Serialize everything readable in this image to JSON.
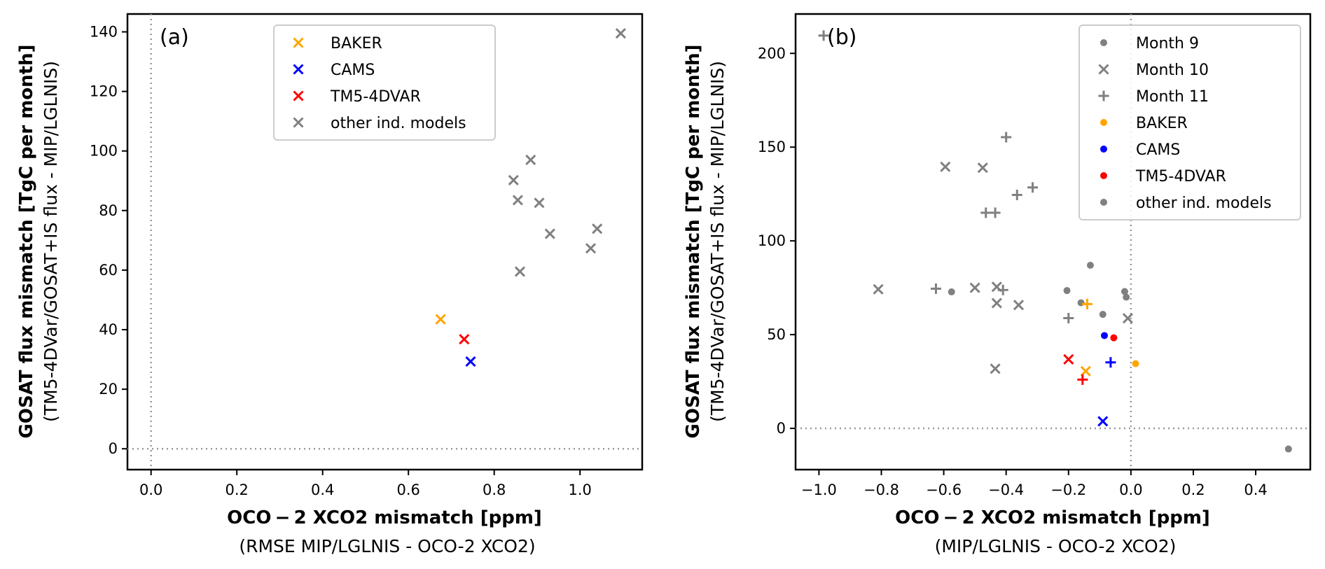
{
  "chart_data": [
    {
      "type": "scatter",
      "panel_label": "(a)",
      "xlabel": "OCO − 2 XCO2 mismatch [ppm]",
      "xlabel_sub": "(RMSE MIP/LGLNIS - OCO-2 XCO2)",
      "ylabel": "GOSAT flux mismatch [TgC per month]",
      "ylabel_sub": "(TM5-4DVar/GOSAT+IS flux - MIP/LGLNIS)",
      "xlim": [
        -0.055,
        1.145
      ],
      "ylim": [
        -7,
        146
      ],
      "xticks": [
        0.0,
        0.2,
        0.4,
        0.6,
        0.8,
        1.0
      ],
      "xtick_labels": [
        "0.0",
        "0.2",
        "0.4",
        "0.6",
        "0.8",
        "1.0"
      ],
      "yticks": [
        0,
        20,
        40,
        60,
        80,
        100,
        120,
        140
      ],
      "ytick_labels": [
        "0",
        "20",
        "40",
        "60",
        "80",
        "100",
        "120",
        "140"
      ],
      "ref_lines": {
        "x": 0,
        "y": 0
      },
      "legend": {
        "position": "upper center",
        "entries": [
          {
            "label": "BAKER",
            "color": "#FFA500",
            "marker": "x"
          },
          {
            "label": "CAMS",
            "color": "#0000FF",
            "marker": "x"
          },
          {
            "label": "TM5-4DVAR",
            "color": "#FF0000",
            "marker": "x"
          },
          {
            "label": "other ind. models",
            "color": "#808080",
            "marker": "x"
          }
        ]
      },
      "series": [
        {
          "name": "BAKER",
          "color": "#FFA500",
          "marker": "x",
          "x": [
            0.675
          ],
          "y": [
            43.5
          ]
        },
        {
          "name": "CAMS",
          "color": "#0000FF",
          "marker": "x",
          "x": [
            0.745
          ],
          "y": [
            29.3
          ]
        },
        {
          "name": "TM5-4DVAR",
          "color": "#FF0000",
          "marker": "x",
          "x": [
            0.73
          ],
          "y": [
            36.8
          ]
        },
        {
          "name": "other ind. models",
          "color": "#808080",
          "marker": "x",
          "x": [
            0.845,
            0.855,
            0.885,
            0.905,
            0.86,
            0.93,
            1.025,
            1.04,
            1.095
          ],
          "y": [
            90.2,
            83.5,
            97.0,
            82.6,
            59.5,
            72.2,
            67.3,
            73.9,
            139.5
          ]
        }
      ]
    },
    {
      "type": "scatter",
      "panel_label": "(b)",
      "xlabel": "OCO − 2 XCO2 mismatch [ppm]",
      "xlabel_sub": "(MIP/LGLNIS - OCO-2 XCO2)",
      "ylabel": "GOSAT flux mismatch [TgC per month]",
      "ylabel_sub": "(TM5-4DVar/GOSAT+IS flux - MIP/LGLNIS)",
      "xlim": [
        -1.075,
        0.575
      ],
      "ylim": [
        -22,
        221
      ],
      "xticks": [
        -1.0,
        -0.8,
        -0.6,
        -0.4,
        -0.2,
        0.0,
        0.2,
        0.4
      ],
      "xtick_labels": [
        "−1.0",
        "−0.8",
        "−0.6",
        "−0.4",
        "−0.2",
        "0.0",
        "0.2",
        "0.4"
      ],
      "yticks": [
        0,
        50,
        100,
        150,
        200
      ],
      "ytick_labels": [
        "0",
        "50",
        "100",
        "150",
        "200"
      ],
      "ref_lines": {
        "x": 0,
        "y": 0
      },
      "legend": {
        "position": "upper right",
        "entries": [
          {
            "label": "Month 9",
            "color": "#808080",
            "marker": "o"
          },
          {
            "label": "Month 10",
            "color": "#808080",
            "marker": "x"
          },
          {
            "label": "Month 11",
            "color": "#808080",
            "marker": "+"
          },
          {
            "label": "BAKER",
            "color": "#FFA500",
            "marker": "o"
          },
          {
            "label": "CAMS",
            "color": "#0000FF",
            "marker": "o"
          },
          {
            "label": "TM5-4DVAR",
            "color": "#FF0000",
            "marker": "o"
          },
          {
            "label": "other ind. models",
            "color": "#808080",
            "marker": "o"
          }
        ]
      },
      "series": [
        {
          "name": "BAKER",
          "color": "#FFA500",
          "month": 9,
          "marker": "o",
          "x": [
            0.015
          ],
          "y": [
            34.5
          ]
        },
        {
          "name": "CAMS",
          "color": "#0000FF",
          "month": 9,
          "marker": "o",
          "x": [
            -0.085
          ],
          "y": [
            49.5
          ]
        },
        {
          "name": "TM5-4DVAR",
          "color": "#FF0000",
          "month": 9,
          "marker": "o",
          "x": [
            -0.055
          ],
          "y": [
            48.3
          ]
        },
        {
          "name": "other ind. models",
          "color": "#808080",
          "month": 9,
          "marker": "o",
          "x": [
            -0.575,
            -0.205,
            -0.16,
            -0.13,
            -0.09,
            -0.02,
            -0.015,
            0.505
          ],
          "y": [
            72.8,
            73.5,
            67.0,
            87.0,
            60.8,
            73.0,
            70.0,
            -11.0
          ]
        },
        {
          "name": "BAKER",
          "color": "#FFA500",
          "month": 10,
          "marker": "x",
          "x": [
            -0.145
          ],
          "y": [
            30.5
          ]
        },
        {
          "name": "CAMS",
          "color": "#0000FF",
          "month": 10,
          "marker": "x",
          "x": [
            -0.09
          ],
          "y": [
            3.8
          ]
        },
        {
          "name": "TM5-4DVAR",
          "color": "#FF0000",
          "month": 10,
          "marker": "x",
          "x": [
            -0.2
          ],
          "y": [
            36.8
          ]
        },
        {
          "name": "other ind. models",
          "color": "#808080",
          "month": 10,
          "marker": "x",
          "x": [
            -0.81,
            -0.595,
            -0.5,
            -0.475,
            -0.43,
            -0.43,
            -0.435,
            -0.36,
            -0.01
          ],
          "y": [
            74.2,
            139.5,
            75.0,
            139.0,
            75.5,
            66.8,
            31.8,
            65.8,
            58.7
          ]
        },
        {
          "name": "BAKER",
          "color": "#FFA500",
          "month": 11,
          "marker": "+",
          "x": [
            -0.14
          ],
          "y": [
            66.3
          ]
        },
        {
          "name": "CAMS",
          "color": "#0000FF",
          "month": 11,
          "marker": "+",
          "x": [
            -0.065
          ],
          "y": [
            35.2
          ]
        },
        {
          "name": "TM5-4DVAR",
          "color": "#FF0000",
          "month": 11,
          "marker": "+",
          "x": [
            -0.155
          ],
          "y": [
            26.0
          ]
        },
        {
          "name": "other ind. models",
          "color": "#808080",
          "month": 11,
          "marker": "+",
          "x": [
            -0.985,
            -0.625,
            -0.4,
            -0.365,
            -0.315,
            -0.465,
            -0.435,
            -0.41,
            -0.2
          ],
          "y": [
            209.5,
            74.5,
            155.3,
            124.5,
            128.5,
            115.0,
            115.0,
            73.8,
            58.8
          ]
        }
      ]
    }
  ]
}
